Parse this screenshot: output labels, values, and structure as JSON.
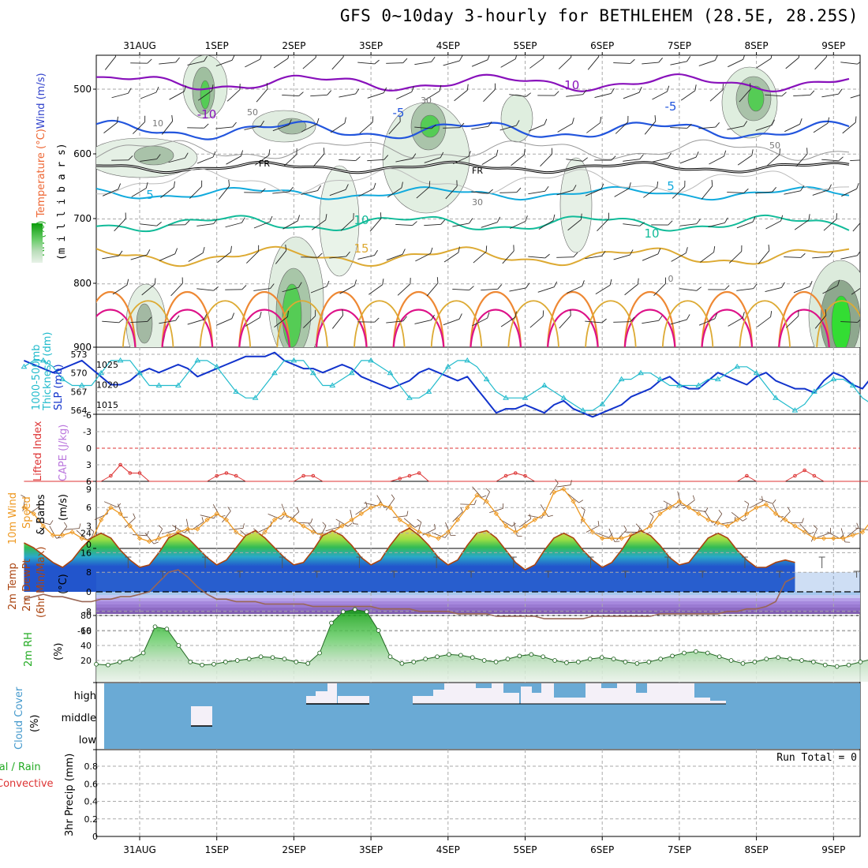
{
  "title": "GFS 0~10day 3-hourly for BETHLEHEM (28.5E, 28.25S)",
  "date_labels": [
    "31AUG",
    "1SEP",
    "2SEP",
    "3SEP",
    "4SEP",
    "5SEP",
    "6SEP",
    "7SEP",
    "8SEP",
    "9SEP"
  ],
  "colors": {
    "grid": "#aaaaaa",
    "slp": "#1133cc",
    "thick": "#22bbcc",
    "lifted": "#dd3333",
    "wind": "#ee9922",
    "temp": "#aa4411",
    "rh": "#22aa22",
    "cloud": "#6aaad5",
    "cloud_light": "#f4f0f8"
  },
  "panels": {
    "upper": {
      "ylabel_parts": [
        "Wind (m/s)",
        "Temperature (°C)",
        "RH (%)"
      ],
      "ylabel2": "(m i l l i b a r s)",
      "y_ticks": [
        "500",
        "600",
        "700",
        "800",
        "900"
      ],
      "contour_labels": {
        "fr": "FR",
        "m10": "-10",
        "m5": "-5",
        "p5": "5",
        "p10": "10",
        "p15": "15",
        "p0": "0",
        "rh30": "30",
        "rh10": "10",
        "rh50": "50"
      }
    },
    "slp": {
      "ylabel1": "1000-500mb",
      "ylabel2": "Thickness (dm)",
      "ylabel3": "SLP (mb)",
      "left_ticks": [
        "573",
        "570",
        "567",
        "564"
      ],
      "right_ticks": [
        "1025",
        "1020",
        "1015"
      ]
    },
    "cape": {
      "ylabel1": "Lifted Index",
      "ylabel2": "CAPE (J/kg)",
      "ticks": [
        "-6",
        "-3",
        "0",
        "3",
        "6"
      ]
    },
    "wind": {
      "ylabel1": "10m Wind",
      "ylabel2": "Speed",
      "ylabel3": "& Barbs",
      "unit": "(m/s)",
      "ticks": [
        "9",
        "6",
        "3",
        "0"
      ]
    },
    "temp": {
      "ylabel1": "2m Temp",
      "ylabel2": "2m DewPt",
      "ylabel3": "(6hr Min/Max)",
      "unit": "(°C)",
      "ticks": [
        "24",
        "16",
        "8",
        "0",
        "-8",
        "-16"
      ]
    },
    "rh": {
      "ylabel": "2m RH",
      "unit": "(%)",
      "ticks": [
        "80",
        "60",
        "40",
        "20"
      ]
    },
    "cloud": {
      "ylabel": "Cloud Cover",
      "unit": "(%)",
      "levels": [
        "high",
        "middle",
        "low"
      ]
    },
    "precip": {
      "ylabel1": "Total / Rain",
      "ylabel2": "Convective",
      "ylabel3": "3hr Precip (mm)",
      "ticks": [
        "0.8",
        "0.6",
        "0.4",
        "0.2",
        "0"
      ],
      "run_total": "Run Total = 0"
    }
  },
  "chart_data": [
    {
      "type": "line",
      "name": "Sea level pressure (mb)",
      "x_start": "2020-08-30T12",
      "step_hours": 3,
      "values": [
        1026,
        1025,
        1024,
        1023,
        1024,
        1025,
        1026,
        1024,
        1022,
        1020,
        1020,
        1021,
        1023,
        1024,
        1023,
        1024,
        1025,
        1024,
        1022,
        1023,
        1024,
        1025,
        1026,
        1027,
        1027,
        1027,
        1028,
        1026,
        1025,
        1024,
        1024,
        1023,
        1024,
        1025,
        1024,
        1022,
        1021,
        1020,
        1019,
        1020,
        1021,
        1023,
        1024,
        1023,
        1022,
        1021,
        1022,
        1019,
        1016,
        1013,
        1014,
        1014,
        1015,
        1014,
        1013,
        1015,
        1016,
        1014,
        1013,
        1012,
        1013,
        1014,
        1015,
        1017,
        1018,
        1019,
        1021,
        1022,
        1020,
        1019,
        1019,
        1021,
        1023,
        1022,
        1021,
        1020,
        1022,
        1023,
        1021,
        1020,
        1019,
        1019,
        1018,
        1021,
        1023,
        1022,
        1020,
        1019,
        1022,
        1024,
        1025,
        1026,
        1026
      ]
    },
    {
      "type": "line",
      "name": "1000-500mb thickness (dm)",
      "x_start": "2020-08-30T12",
      "step_hours": 3,
      "values": [
        571,
        572,
        572,
        571,
        569,
        568,
        568,
        568,
        570,
        572,
        572,
        572,
        570,
        568,
        568,
        568,
        568,
        570,
        572,
        572,
        571,
        569,
        567,
        566,
        566,
        568,
        570,
        572,
        572,
        572,
        570,
        568,
        568,
        569,
        570,
        572,
        572,
        571,
        570,
        568,
        566,
        566,
        567,
        569,
        571,
        572,
        572,
        571,
        569,
        567,
        566,
        566,
        566,
        567,
        568,
        567,
        566,
        565,
        564,
        564,
        565,
        567,
        569,
        569,
        570,
        570,
        569,
        568,
        568,
        568,
        568,
        569,
        569,
        570,
        571,
        571,
        570,
        568,
        566,
        565,
        564,
        565,
        567,
        568,
        569,
        569,
        568,
        566,
        565,
        564,
        564,
        564,
        565,
        566
      ]
    },
    {
      "type": "line",
      "name": "10m wind speed (m/s)",
      "x_start": "2020-08-30T12",
      "step_hours": 3,
      "values": [
        6,
        5,
        3,
        1.5,
        1.5,
        2,
        1,
        0.5,
        4,
        6,
        5,
        3,
        1,
        0.5,
        1,
        1.5,
        2,
        2.5,
        2.5,
        4,
        5,
        4,
        2,
        1,
        0.5,
        2,
        4,
        5,
        4,
        3,
        2,
        1.5,
        2,
        3,
        4,
        5,
        6,
        6.5,
        6,
        4,
        3,
        2,
        1.5,
        1,
        2,
        4,
        6,
        8,
        7,
        5,
        3,
        2,
        3,
        4,
        5,
        8.5,
        9,
        7,
        4,
        2,
        1,
        1,
        1,
        1.5,
        2,
        3,
        5,
        6,
        7,
        6,
        5,
        4,
        3.5,
        3,
        4,
        5,
        6,
        6.5,
        5,
        4,
        3,
        2,
        1,
        1,
        1,
        1,
        1.5,
        2,
        4,
        5,
        6,
        7,
        6,
        4,
        2
      ]
    },
    {
      "type": "area",
      "name": "2m temperature (°C)",
      "x_start": "2020-08-30T12",
      "step_hours": 3,
      "values": [
        20,
        18,
        15,
        12,
        10,
        13,
        18,
        22,
        24,
        22,
        17,
        13,
        10,
        11,
        16,
        22,
        24,
        22,
        18,
        14,
        11,
        13,
        18,
        23,
        25,
        22,
        18,
        14,
        11,
        12,
        17,
        23,
        25,
        23,
        19,
        14,
        11,
        13,
        19,
        24,
        26,
        23,
        19,
        14,
        11,
        13,
        19,
        24,
        25,
        22,
        17,
        12,
        9,
        11,
        17,
        22,
        24,
        22,
        17,
        13,
        10,
        12,
        17,
        23,
        25,
        23,
        19,
        14,
        11,
        12,
        17,
        22,
        24,
        22,
        17,
        13,
        10,
        10,
        12,
        13,
        12
      ]
    },
    {
      "type": "line",
      "name": "2m dew point (°C)",
      "x_start": "2020-08-30T12",
      "step_hours": 3,
      "values": [
        -3,
        -2,
        -1,
        -2,
        -2,
        -3,
        -4,
        -4,
        -3,
        -3,
        -2,
        -2,
        -1,
        0,
        4,
        8,
        9,
        6,
        2,
        -1,
        -3,
        -3,
        -4,
        -4,
        -4,
        -5,
        -5,
        -5,
        -5,
        -5,
        -6,
        -6,
        -6,
        -6,
        -6,
        -6,
        -6,
        -7,
        -7,
        -7,
        -7,
        -8,
        -8,
        -8,
        -8,
        -9,
        -9,
        -9,
        -9,
        -10,
        -10,
        -10,
        -10,
        -10,
        -11,
        -11,
        -11,
        -11,
        -11,
        -10,
        -10,
        -10,
        -10,
        -10,
        -10,
        -10,
        -9,
        -9,
        -9,
        -9,
        -9,
        -9,
        -9,
        -8,
        -8,
        -7,
        -7,
        -6,
        -4,
        4,
        6
      ]
    },
    {
      "type": "area",
      "name": "2m relative humidity (%)",
      "x_start": "2020-08-30T12",
      "step_hours": 3,
      "values": [
        15,
        14,
        18,
        22,
        30,
        65,
        62,
        40,
        18,
        14,
        15,
        18,
        20,
        22,
        25,
        24,
        22,
        18,
        16,
        30,
        70,
        85,
        88,
        85,
        60,
        25,
        16,
        18,
        22,
        25,
        28,
        27,
        24,
        20,
        18,
        22,
        26,
        28,
        25,
        20,
        17,
        18,
        22,
        24,
        22,
        18,
        16,
        18,
        22,
        26,
        30,
        32,
        30,
        25,
        20,
        16,
        18,
        22,
        24,
        22,
        20,
        18,
        14,
        12,
        14,
        18,
        22,
        25,
        35,
        22,
        14,
        12,
        18,
        60,
        80,
        88,
        88,
        80,
        70
      ]
    },
    {
      "type": "line",
      "name": "Lifted index",
      "x_start": "2020-08-30T12",
      "step_hours": 3,
      "values": [
        6,
        6,
        6,
        6,
        6,
        6,
        6,
        6,
        6,
        5,
        3,
        4.5,
        4.5,
        6,
        6,
        6,
        6,
        6,
        6,
        6,
        5,
        4.5,
        5,
        6,
        6,
        6,
        6,
        6,
        6,
        5,
        5,
        6,
        6,
        6,
        6,
        6,
        6,
        6,
        6,
        5.5,
        5,
        4.5,
        6,
        6,
        6,
        6,
        6,
        6,
        6,
        6,
        5,
        4.5,
        5,
        6,
        6,
        6,
        6,
        6,
        6,
        6,
        6,
        6,
        6,
        6,
        6,
        6,
        6,
        6,
        6,
        6,
        6,
        6,
        6,
        6,
        6,
        5,
        6,
        6,
        6,
        6,
        5,
        4,
        5,
        6,
        6,
        6,
        6,
        6,
        6,
        6,
        6,
        6,
        6,
        6,
        6,
        6,
        6,
        2
      ]
    }
  ]
}
